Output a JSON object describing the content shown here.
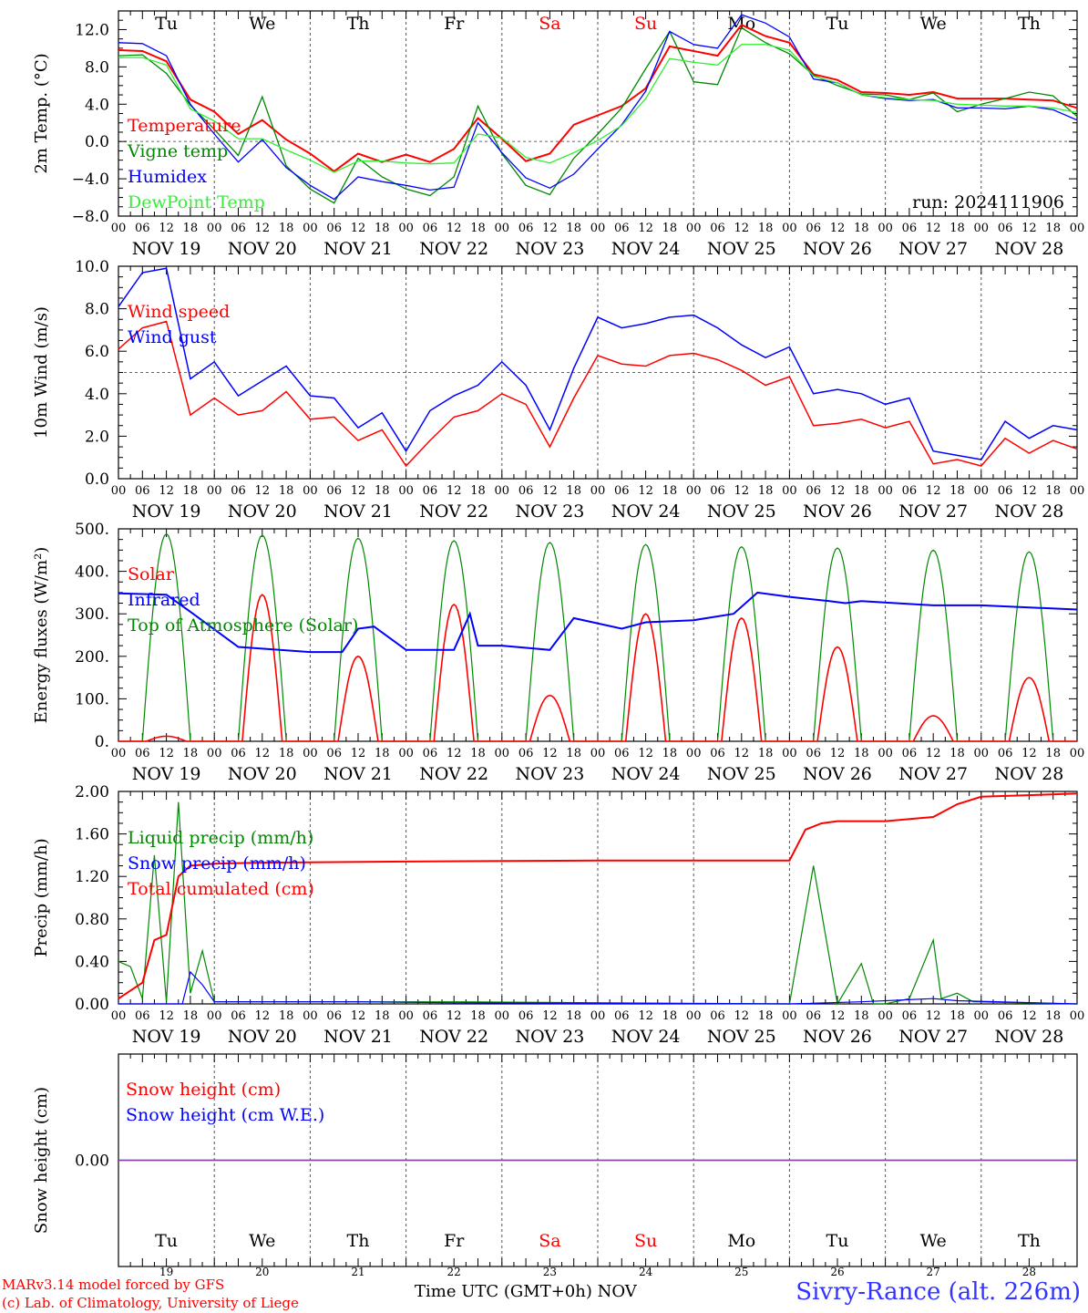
{
  "top_days": [
    {
      "label": "Tu",
      "color": "#000000"
    },
    {
      "label": "We",
      "color": "#000000"
    },
    {
      "label": "Th",
      "color": "#000000"
    },
    {
      "label": "Fr",
      "color": "#000000"
    },
    {
      "label": "Sa",
      "color": "#ff0000"
    },
    {
      "label": "Su",
      "color": "#ff0000"
    },
    {
      "label": "Mo",
      "color": "#000000"
    },
    {
      "label": "Tu",
      "color": "#000000"
    },
    {
      "label": "We",
      "color": "#000000"
    },
    {
      "label": "Th",
      "color": "#000000"
    }
  ],
  "date_labels": [
    "NOV 19",
    "NOV 20",
    "NOV 21",
    "NOV 22",
    "NOV 23",
    "NOV 24",
    "NOV 25",
    "NOV 26",
    "NOV 27",
    "NOV 28"
  ],
  "hour_ticks": [
    "00",
    "06",
    "12",
    "18"
  ],
  "hour_end": "00",
  "bottom_day_numbers": [
    "19",
    "20",
    "21",
    "22",
    "23",
    "24",
    "25",
    "26",
    "27",
    "28"
  ],
  "footer": {
    "model": "MARv3.14 model forced by GFS",
    "copyright": "(c) Lab. of Climatology, University of Liege",
    "xlabel": "Time UTC (GMT+0h)",
    "month": "NOV",
    "station": "Sivry-Rance (alt. 226m)"
  },
  "colors": {
    "red": "#ff0000",
    "green": "#008800",
    "blue": "#0000ff",
    "lightgreen": "#33ee33",
    "purple": "#8844aa"
  },
  "chart_data": [
    {
      "type": "line",
      "id": "temp",
      "ylabel": "2m Temp. (°C)",
      "ylim": [
        -8,
        14
      ],
      "yticks": [
        {
          "v": 12,
          "label": "12.0"
        },
        {
          "v": 8,
          "label": "8.0"
        },
        {
          "v": 4,
          "label": "4.0"
        },
        {
          "v": 0,
          "label": "0.0"
        },
        {
          "v": -4,
          "label": "−4.0"
        },
        {
          "v": -8,
          "label": "−8.0"
        }
      ],
      "reference_line": 0,
      "annotation": "run: 2024111906",
      "x_hours": [
        0,
        6,
        12,
        18,
        24,
        30,
        36,
        42,
        48,
        54,
        60,
        66,
        72,
        78,
        84,
        90,
        96,
        102,
        108,
        114,
        120,
        126,
        132,
        138,
        144,
        150,
        156,
        162,
        168,
        174,
        180,
        186,
        192,
        198,
        204,
        210,
        216,
        222,
        228,
        234,
        240
      ],
      "series": [
        {
          "name": "Temperature",
          "color": "red",
          "values": [
            9.8,
            9.7,
            8.6,
            4.5,
            3.2,
            0.8,
            2.3,
            0.2,
            -1.3,
            -3.2,
            -1.3,
            -2.2,
            -1.4,
            -2.2,
            -0.8,
            2.5,
            0.3,
            -2.1,
            -1.3,
            1.8,
            2.8,
            3.8,
            5.7,
            10.2,
            9.7,
            9.2,
            12.5,
            11.3,
            10.6,
            7.2,
            6.6,
            5.3,
            5.2,
            5.0,
            5.3,
            4.6,
            4.6,
            4.6,
            4.5,
            4.4,
            3.6
          ]
        },
        {
          "name": "Vigne temp",
          "color": "green",
          "values": [
            9.2,
            9.3,
            7.3,
            3.9,
            1.3,
            -1.5,
            4.8,
            -2.6,
            -5.1,
            -6.6,
            -1.8,
            -3.8,
            -5.1,
            -5.8,
            -3.8,
            3.8,
            -1.3,
            -4.7,
            -5.7,
            -1.8,
            0.8,
            3.6,
            7.8,
            11.8,
            6.4,
            6.1,
            12.2,
            10.6,
            9.4,
            7.1,
            6.0,
            5.1,
            5.0,
            4.5,
            5.2,
            3.2,
            4.0,
            4.6,
            5.3,
            4.9,
            2.7
          ]
        },
        {
          "name": "Humidex",
          "color": "blue",
          "values": [
            10.6,
            10.5,
            9.2,
            4.0,
            0.8,
            -2.2,
            0.2,
            -2.8,
            -4.7,
            -6.2,
            -3.8,
            -4.3,
            -4.7,
            -5.2,
            -4.9,
            2.0,
            -1.2,
            -3.9,
            -5.0,
            -3.5,
            -0.8,
            1.8,
            5.4,
            11.8,
            10.4,
            10.0,
            13.6,
            12.7,
            11.2,
            6.7,
            6.3,
            5.0,
            4.6,
            4.4,
            4.5,
            3.6,
            3.6,
            3.5,
            3.8,
            3.4,
            2.3
          ]
        },
        {
          "name": "DewPoint Temp",
          "color": "lightgreen",
          "values": [
            9.0,
            9.0,
            8.2,
            3.5,
            2.2,
            0.3,
            0.3,
            -0.9,
            -2.0,
            -3.3,
            -2.1,
            -2.1,
            -2.3,
            -2.4,
            -2.3,
            0.8,
            0.4,
            -1.7,
            -2.3,
            -1.2,
            0.1,
            1.7,
            4.6,
            8.9,
            8.5,
            8.2,
            10.4,
            10.4,
            9.8,
            7.0,
            6.3,
            5.0,
            4.7,
            4.5,
            4.4,
            4.0,
            3.9,
            3.8,
            3.8,
            3.6,
            3.1
          ]
        }
      ]
    },
    {
      "type": "line",
      "id": "wind",
      "ylabel": "10m Wind (m/s)",
      "ylim": [
        0,
        10
      ],
      "yticks": [
        {
          "v": 10,
          "label": "10.0"
        },
        {
          "v": 8,
          "label": "8.0"
        },
        {
          "v": 6,
          "label": "6.0"
        },
        {
          "v": 4,
          "label": "4.0"
        },
        {
          "v": 2,
          "label": "2.0"
        },
        {
          "v": 0,
          "label": "0.0"
        }
      ],
      "reference_line": 5,
      "x_hours": [
        0,
        6,
        12,
        18,
        24,
        30,
        36,
        42,
        48,
        54,
        60,
        66,
        72,
        78,
        84,
        90,
        96,
        102,
        108,
        114,
        120,
        126,
        132,
        138,
        144,
        150,
        156,
        162,
        168,
        174,
        180,
        186,
        192,
        198,
        204,
        210,
        216,
        222,
        228,
        234,
        240
      ],
      "series": [
        {
          "name": "Wind speed",
          "color": "red",
          "values": [
            6.1,
            7.1,
            7.4,
            3.0,
            3.8,
            3.0,
            3.2,
            4.1,
            2.8,
            2.9,
            1.8,
            2.3,
            0.6,
            1.8,
            2.9,
            3.2,
            4.0,
            3.5,
            1.5,
            3.8,
            5.8,
            5.4,
            5.3,
            5.8,
            5.9,
            5.6,
            5.1,
            4.4,
            4.8,
            2.5,
            2.6,
            2.8,
            2.4,
            2.7,
            0.7,
            0.9,
            0.6,
            1.9,
            1.2,
            1.8,
            1.4
          ]
        },
        {
          "name": "Wind gust",
          "color": "blue",
          "values": [
            8.1,
            9.7,
            9.9,
            4.7,
            5.5,
            3.9,
            4.6,
            5.3,
            3.9,
            3.8,
            2.4,
            3.1,
            1.3,
            3.2,
            3.9,
            4.4,
            5.5,
            4.4,
            2.3,
            5.2,
            7.6,
            7.1,
            7.3,
            7.6,
            7.7,
            7.1,
            6.3,
            5.7,
            6.2,
            4.0,
            4.2,
            4.0,
            3.5,
            3.8,
            1.3,
            1.1,
            0.9,
            2.7,
            1.9,
            2.5,
            2.3
          ]
        }
      ]
    },
    {
      "type": "line",
      "id": "energy",
      "ylabel": "Energy fluxes (W/m²)",
      "ylim": [
        0,
        500
      ],
      "yticks": [
        {
          "v": 500,
          "label": "500."
        },
        {
          "v": 400,
          "label": "400."
        },
        {
          "v": 300,
          "label": "300."
        },
        {
          "v": 200,
          "label": "200."
        },
        {
          "v": 100,
          "label": "100."
        },
        {
          "v": 0,
          "label": "0."
        }
      ],
      "x_hours": [
        0,
        12,
        18,
        30,
        48,
        56,
        60,
        64,
        72,
        84,
        88,
        90,
        96,
        108,
        114,
        126,
        132,
        144,
        154,
        160,
        168,
        178,
        182,
        186,
        204,
        216,
        240
      ],
      "infrared_values": [
        348,
        345,
        305,
        222,
        210,
        210,
        265,
        270,
        215,
        215,
        300,
        225,
        225,
        215,
        290,
        265,
        280,
        285,
        300,
        350,
        340,
        330,
        325,
        330,
        320,
        320,
        310
      ],
      "series": [
        {
          "name": "Solar",
          "color": "red",
          "peaks": [
            {
              "hour": 12,
              "value": 12
            },
            {
              "hour": 36,
              "value": 345
            },
            {
              "hour": 60,
              "value": 200
            },
            {
              "hour": 84,
              "value": 322
            },
            {
              "hour": 108,
              "value": 108
            },
            {
              "hour": 132,
              "value": 300
            },
            {
              "hour": 156,
              "value": 290
            },
            {
              "hour": 180,
              "value": 222
            },
            {
              "hour": 204,
              "value": 60
            },
            {
              "hour": 228,
              "value": 150
            }
          ]
        },
        {
          "name": "Infrared",
          "color": "blue"
        },
        {
          "name": "Top of Atmosphere (Solar)",
          "color": "green",
          "peaks": [
            {
              "hour": 12,
              "value": 488
            },
            {
              "hour": 36,
              "value": 485
            },
            {
              "hour": 60,
              "value": 478
            },
            {
              "hour": 84,
              "value": 472
            },
            {
              "hour": 108,
              "value": 468
            },
            {
              "hour": 132,
              "value": 463
            },
            {
              "hour": 156,
              "value": 458
            },
            {
              "hour": 180,
              "value": 455
            },
            {
              "hour": 204,
              "value": 450
            },
            {
              "hour": 228,
              "value": 446
            }
          ]
        }
      ]
    },
    {
      "type": "line",
      "id": "precip",
      "ylabel": "Precip (mm/h)",
      "ylim": [
        0,
        2
      ],
      "yticks": [
        {
          "v": 2.0,
          "label": "2.00"
        },
        {
          "v": 1.6,
          "label": "1.60"
        },
        {
          "v": 1.2,
          "label": "1.20"
        },
        {
          "v": 0.8,
          "label": "0.80"
        },
        {
          "v": 0.4,
          "label": "0.40"
        },
        {
          "v": 0,
          "label": "0.00"
        }
      ],
      "series": [
        {
          "name": "Liquid precip (mm/h)",
          "color": "green",
          "x_hours": [
            0,
            3,
            6,
            9,
            12,
            15,
            18,
            21,
            24,
            60,
            84,
            168,
            174,
            180,
            186,
            189,
            192,
            198,
            204,
            206,
            210,
            214,
            240
          ],
          "values": [
            0.4,
            0.35,
            0.05,
            1.4,
            0.02,
            1.9,
            0.1,
            0.5,
            0.02,
            0.02,
            0.02,
            0.0,
            1.3,
            0.0,
            0.38,
            0.0,
            0.0,
            0.05,
            0.6,
            0.05,
            0.1,
            0.02,
            0.0
          ]
        },
        {
          "name": "Snow precip (mm/h)",
          "color": "blue",
          "x_hours": [
            0,
            16,
            18,
            21,
            24,
            60,
            84,
            168,
            186,
            204,
            210,
            240
          ],
          "values": [
            0,
            0,
            0.3,
            0.18,
            0.02,
            0.02,
            0.01,
            0,
            0.02,
            0.05,
            0.03,
            0
          ]
        },
        {
          "name": "Total cumulated (cm)",
          "color": "red",
          "x_hours": [
            0,
            6,
            9,
            12,
            15,
            18,
            24,
            36,
            72,
            120,
            168,
            172,
            176,
            180,
            192,
            204,
            210,
            216,
            240
          ],
          "values": [
            0.05,
            0.2,
            0.6,
            0.65,
            1.2,
            1.3,
            1.32,
            1.33,
            1.34,
            1.35,
            1.35,
            1.64,
            1.7,
            1.72,
            1.72,
            1.76,
            1.88,
            1.95,
            1.98
          ]
        }
      ]
    },
    {
      "type": "line",
      "id": "snow",
      "ylabel": "Snow height (cm)",
      "ylim": [
        -1,
        1
      ],
      "yticks": [
        {
          "v": 0,
          "label": "0.00"
        }
      ],
      "x_hours": [
        0,
        240
      ],
      "series": [
        {
          "name": "Snow height (cm)",
          "color": "red",
          "values": [
            0,
            0
          ]
        },
        {
          "name": "Snow height (cm W.E.)",
          "color": "blue",
          "values": [
            0,
            0
          ]
        }
      ]
    }
  ]
}
